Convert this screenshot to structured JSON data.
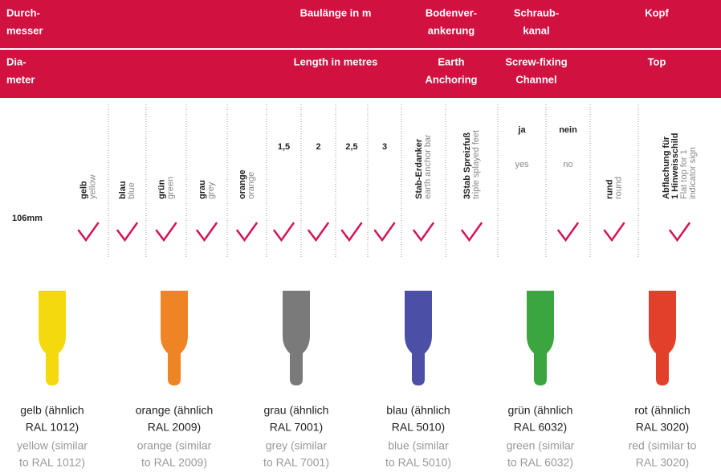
{
  "header": {
    "groups": [
      {
        "de": [
          "Durch-",
          "messer"
        ],
        "en": [
          "Dia-",
          "meter"
        ]
      },
      {
        "de": [
          "Baulänge in m"
        ],
        "en": [
          "Length in metres"
        ]
      },
      {
        "de": [
          "Bodenver-",
          "ankerung"
        ],
        "en": [
          "Earth",
          "Anchoring"
        ]
      },
      {
        "de": [
          "Schraub-",
          "kanal"
        ],
        "en": [
          "Screw-fixing",
          "Channel"
        ]
      },
      {
        "de": [
          "Kopf"
        ],
        "en": [
          "Top"
        ]
      }
    ]
  },
  "columns": [
    {
      "de": [
        "gelb"
      ],
      "en": [
        "yellow"
      ]
    },
    {
      "de": [
        "blau"
      ],
      "en": [
        "blue"
      ]
    },
    {
      "de": [
        "grün"
      ],
      "en": [
        "green"
      ]
    },
    {
      "de": [
        "grau"
      ],
      "en": [
        "grey"
      ]
    },
    {
      "de": [
        "orange"
      ],
      "en": [
        "orange"
      ]
    },
    {
      "de": [
        "1,5"
      ]
    },
    {
      "de": [
        "2"
      ]
    },
    {
      "de": [
        "2,5"
      ]
    },
    {
      "de": [
        "3"
      ]
    },
    {
      "de": [
        "Stab-Erdanker"
      ],
      "en": [
        "earth anchor bar"
      ]
    },
    {
      "de": [
        "3Stab Spreizfuß"
      ],
      "en": [
        "triple splayed feet"
      ]
    },
    {
      "de": [
        "ja"
      ],
      "en": [
        "yes"
      ]
    },
    {
      "de": [
        "nein"
      ],
      "en": [
        "no"
      ]
    },
    {
      "de": [
        "rund"
      ],
      "en": [
        "round"
      ]
    },
    {
      "de": [
        "Abflachung für",
        "1 Hinweisschild"
      ],
      "en": [
        "Flat top for 1",
        "indicator sign"
      ]
    }
  ],
  "rows": [
    {
      "label": "106mm",
      "checks": [
        true,
        true,
        true,
        true,
        true,
        true,
        true,
        true,
        true,
        true,
        true,
        false,
        true,
        true,
        true
      ]
    }
  ],
  "swatches": [
    {
      "color": "#f5d90f",
      "de": [
        "gelb (ähnlich",
        "RAL 1012)"
      ],
      "en": [
        "yellow (similar",
        "to RAL 1012)"
      ]
    },
    {
      "color": "#ee8424",
      "de": [
        "orange (ähnlich",
        "RAL 2009)"
      ],
      "en": [
        "orange (similar",
        "to RAL 2009)"
      ]
    },
    {
      "color": "#7a7a7a",
      "de": [
        "grau (ähnlich",
        "RAL 7001)"
      ],
      "en": [
        "grey (similar",
        "to RAL 7001)"
      ]
    },
    {
      "color": "#4b4fa6",
      "de": [
        "blau (ähnlich",
        "RAL 5010)"
      ],
      "en": [
        "blue (similar",
        "to RAL 5010)"
      ]
    },
    {
      "color": "#3ba53f",
      "de": [
        "grün (ähnlich",
        "RAL 6032)"
      ],
      "en": [
        "green (similar",
        "to RAL 6032)"
      ]
    },
    {
      "color": "#e3402c",
      "de": [
        "rot (ähnlich",
        "RAL 3020)"
      ],
      "en": [
        "red (similar to",
        "RAL 3020)"
      ]
    }
  ]
}
